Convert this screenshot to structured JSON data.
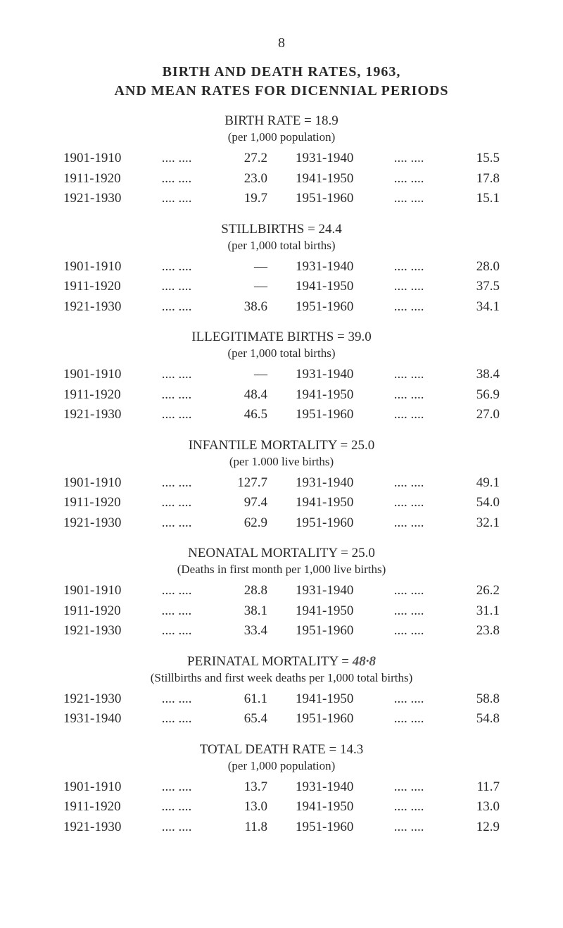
{
  "page_number": "8",
  "main_title": "BIRTH AND DEATH RATES, 1963,",
  "main_subtitle": "AND MEAN RATES FOR DICENNIAL PERIODS",
  "sections": [
    {
      "title": "BIRTH RATE = 18.9",
      "subtitle": "(per 1,000 population)",
      "left": [
        {
          "period": "1901-1910",
          "dots": ".... ....",
          "value": "27.2"
        },
        {
          "period": "1911-1920",
          "dots": ".... ....",
          "value": "23.0"
        },
        {
          "period": "1921-1930",
          "dots": ".... ....",
          "value": "19.7"
        }
      ],
      "right": [
        {
          "period": "1931-1940",
          "dots": ".... ....",
          "value": "15.5"
        },
        {
          "period": "1941-1950",
          "dots": ".... ....",
          "value": "17.8"
        },
        {
          "period": "1951-1960",
          "dots": ".... ....",
          "value": "15.1"
        }
      ]
    },
    {
      "title": "STILLBIRTHS = 24.4",
      "subtitle": "(per 1,000 total births)",
      "left": [
        {
          "period": "1901-1910",
          "dots": ".... ....",
          "value": "—"
        },
        {
          "period": "1911-1920",
          "dots": ".... ....",
          "value": "—"
        },
        {
          "period": "1921-1930",
          "dots": ".... ....",
          "value": "38.6"
        }
      ],
      "right": [
        {
          "period": "1931-1940",
          "dots": ".... ....",
          "value": "28.0"
        },
        {
          "period": "1941-1950",
          "dots": ".... ....",
          "value": "37.5"
        },
        {
          "period": "1951-1960",
          "dots": ".... ....",
          "value": "34.1"
        }
      ]
    },
    {
      "title": "ILLEGITIMATE BIRTHS = 39.0",
      "subtitle": "(per 1,000 total births)",
      "left": [
        {
          "period": "1901-1910",
          "dots": ".... ....",
          "value": "—"
        },
        {
          "period": "1911-1920",
          "dots": ".... ....",
          "value": "48.4"
        },
        {
          "period": "1921-1930",
          "dots": ".... ....",
          "value": "46.5"
        }
      ],
      "right": [
        {
          "period": "1931-1940",
          "dots": ".... ....",
          "value": "38.4"
        },
        {
          "period": "1941-1950",
          "dots": ".... ....",
          "value": "56.9"
        },
        {
          "period": "1951-1960",
          "dots": ".... ....",
          "value": "27.0"
        }
      ]
    },
    {
      "title": "INFANTILE MORTALITY = 25.0",
      "subtitle": "(per 1.000 live births)",
      "left": [
        {
          "period": "1901-1910",
          "dots": ".... ....",
          "value": "127.7"
        },
        {
          "period": "1911-1920",
          "dots": ".... ....",
          "value": "97.4"
        },
        {
          "period": "1921-1930",
          "dots": ".... ....",
          "value": "62.9"
        }
      ],
      "right": [
        {
          "period": "1931-1940",
          "dots": ".... ....",
          "value": "49.1"
        },
        {
          "period": "1941-1950",
          "dots": ".... ....",
          "value": "54.0"
        },
        {
          "period": "1951-1960",
          "dots": ".... ....",
          "value": "32.1"
        }
      ]
    },
    {
      "title": "NEONATAL MORTALITY = 25.0",
      "subtitle": "(Deaths in first month per 1,000 live births)",
      "left": [
        {
          "period": "1901-1910",
          "dots": ".... ....",
          "value": "28.8"
        },
        {
          "period": "1911-1920",
          "dots": ".... ....",
          "value": "38.1"
        },
        {
          "period": "1921-1930",
          "dots": ".... ....",
          "value": "33.4"
        }
      ],
      "right": [
        {
          "period": "1931-1940",
          "dots": ".... ....",
          "value": "26.2"
        },
        {
          "period": "1941-1950",
          "dots": ".... ....",
          "value": "31.1"
        },
        {
          "period": "1951-1960",
          "dots": ".... ....",
          "value": "23.8"
        }
      ]
    },
    {
      "title_prefix": "PERINATAL MORTALITY = ",
      "title_handwritten": "48·8",
      "subtitle": "(Stillbirths and first week deaths per 1,000 total births)",
      "left": [
        {
          "period": "1921-1930",
          "dots": ".... ....",
          "value": "61.1"
        },
        {
          "period": "1931-1940",
          "dots": ".... ....",
          "value": "65.4"
        }
      ],
      "right": [
        {
          "period": "1941-1950",
          "dots": ".... ....",
          "value": "58.8"
        },
        {
          "period": "1951-1960",
          "dots": ".... ....",
          "value": "54.8"
        }
      ]
    },
    {
      "title": "TOTAL DEATH RATE = 14.3",
      "subtitle": "(per 1,000 population)",
      "left": [
        {
          "period": "1901-1910",
          "dots": ".... ....",
          "value": "13.7"
        },
        {
          "period": "1911-1920",
          "dots": ".... ....",
          "value": "13.0"
        },
        {
          "period": "1921-1930",
          "dots": ".... ....",
          "value": "11.8"
        }
      ],
      "right": [
        {
          "period": "1931-1940",
          "dots": ".... ....",
          "value": "11.7"
        },
        {
          "period": "1941-1950",
          "dots": ".... ....",
          "value": "13.0"
        },
        {
          "period": "1951-1960",
          "dots": ".... ....",
          "value": "12.9"
        }
      ]
    }
  ]
}
